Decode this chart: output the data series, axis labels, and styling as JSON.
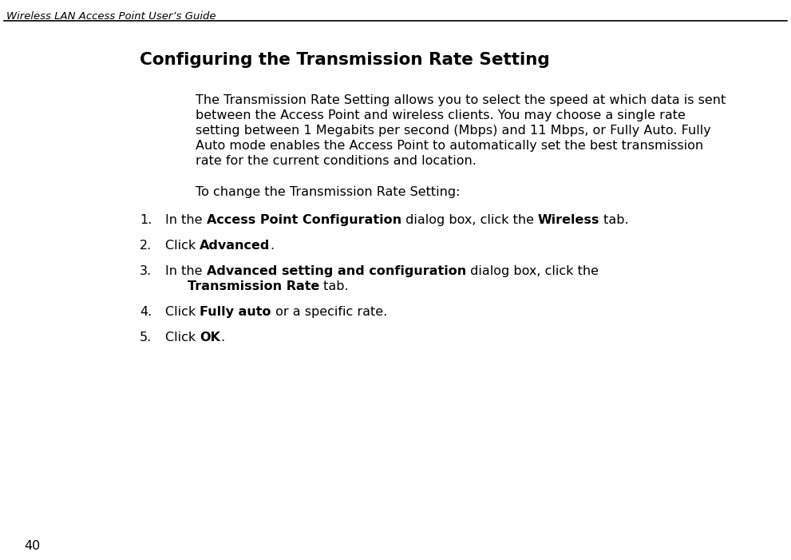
{
  "bg_color": "#ffffff",
  "header_italic_text": "Wireless LAN Access Point User’s Guide",
  "page_number": "40",
  "title": "Configuring the Transmission Rate Setting",
  "paragraph1_lines": [
    "The Transmission Rate Setting allows you to select the speed at which data is sent",
    "between the Access Point and wireless clients. You may choose a single rate",
    "setting between 1 Megabits per second (Mbps) and 11 Mbps, or Fully Auto. Fully",
    "Auto mode enables the Access Point to automatically set the best transmission",
    "rate for the current conditions and location."
  ],
  "paragraph2": "To change the Transmission Rate Setting:",
  "step1_line1_normal1": "In the ",
  "step1_line1_bold1": "Access Point Configuration",
  "step1_line1_normal2": " dialog box, click the ",
  "step1_line1_bold2": "Wireless",
  "step1_line1_normal3": " tab.",
  "step2_line1_normal1": "Click ",
  "step2_line1_bold1": "Advanced",
  "step2_line1_normal2": ".",
  "step3_line1_normal1": "In the ",
  "step3_line1_bold1": "Advanced setting and configuration",
  "step3_line1_normal2": " dialog box, click the",
  "step3_line2_bold1": "Transmission Rate",
  "step3_line2_normal1": " tab.",
  "step4_line1_normal1": "Click ",
  "step4_line1_bold1": "Fully auto",
  "step4_line1_normal2": " or a specific rate.",
  "step5_line1_normal1": "Click ",
  "step5_line1_bold1": "OK",
  "step5_line1_normal2": ".",
  "body_fontsize": 11.5,
  "title_fontsize": 15.5
}
